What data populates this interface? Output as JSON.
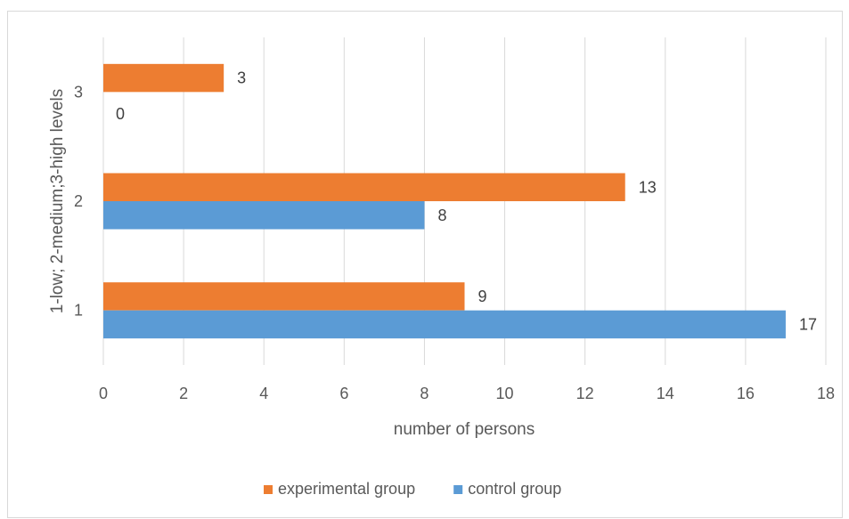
{
  "chart_data": {
    "type": "bar",
    "orientation": "horizontal",
    "categories": [
      "1",
      "2",
      "3"
    ],
    "series": [
      {
        "name": "experimental group",
        "color": "#ED7D31",
        "values": [
          9,
          13,
          3
        ]
      },
      {
        "name": "control group",
        "color": "#5B9BD5",
        "values": [
          17,
          8,
          0
        ]
      }
    ],
    "xlabel": "number of persons",
    "ylabel": "1-low; 2-medium;3-high levels",
    "xlim": [
      0,
      18
    ],
    "x_ticks": [
      0,
      2,
      4,
      6,
      8,
      10,
      12,
      14,
      16,
      18
    ],
    "grid": "vertical",
    "legend_position": "bottom",
    "data_labels": true
  }
}
